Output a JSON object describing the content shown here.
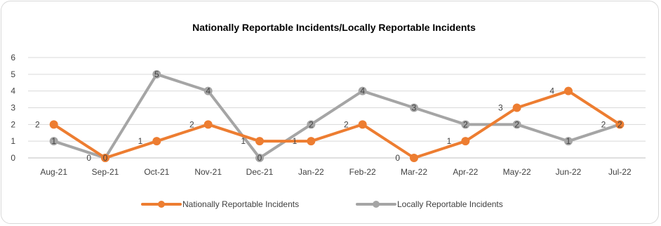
{
  "chart_data": {
    "type": "line",
    "title": "Nationally Reportable Incidents/Locally Reportable Incidents",
    "categories": [
      "Aug-21",
      "Sep-21",
      "Oct-21",
      "Nov-21",
      "Dec-21",
      "Jan-22",
      "Feb-22",
      "Mar-22",
      "Apr-22",
      "May-22",
      "Jun-22",
      "Jul-22"
    ],
    "series": [
      {
        "name": "Nationally Reportable Incidents",
        "color": "#ed7d31",
        "values": [
          2,
          0,
          1,
          2,
          1,
          1,
          2,
          0,
          1,
          3,
          4,
          2
        ]
      },
      {
        "name": "Locally Reportable Incidents",
        "color": "#a5a5a5",
        "values": [
          1,
          0,
          5,
          4,
          0,
          2,
          4,
          3,
          2,
          2,
          1,
          2
        ]
      }
    ],
    "yticks": [
      0,
      1,
      2,
      3,
      4,
      5,
      6
    ],
    "ylim": [
      0,
      6
    ],
    "grid": true,
    "legend_position": "bottom",
    "data_labels": true
  }
}
